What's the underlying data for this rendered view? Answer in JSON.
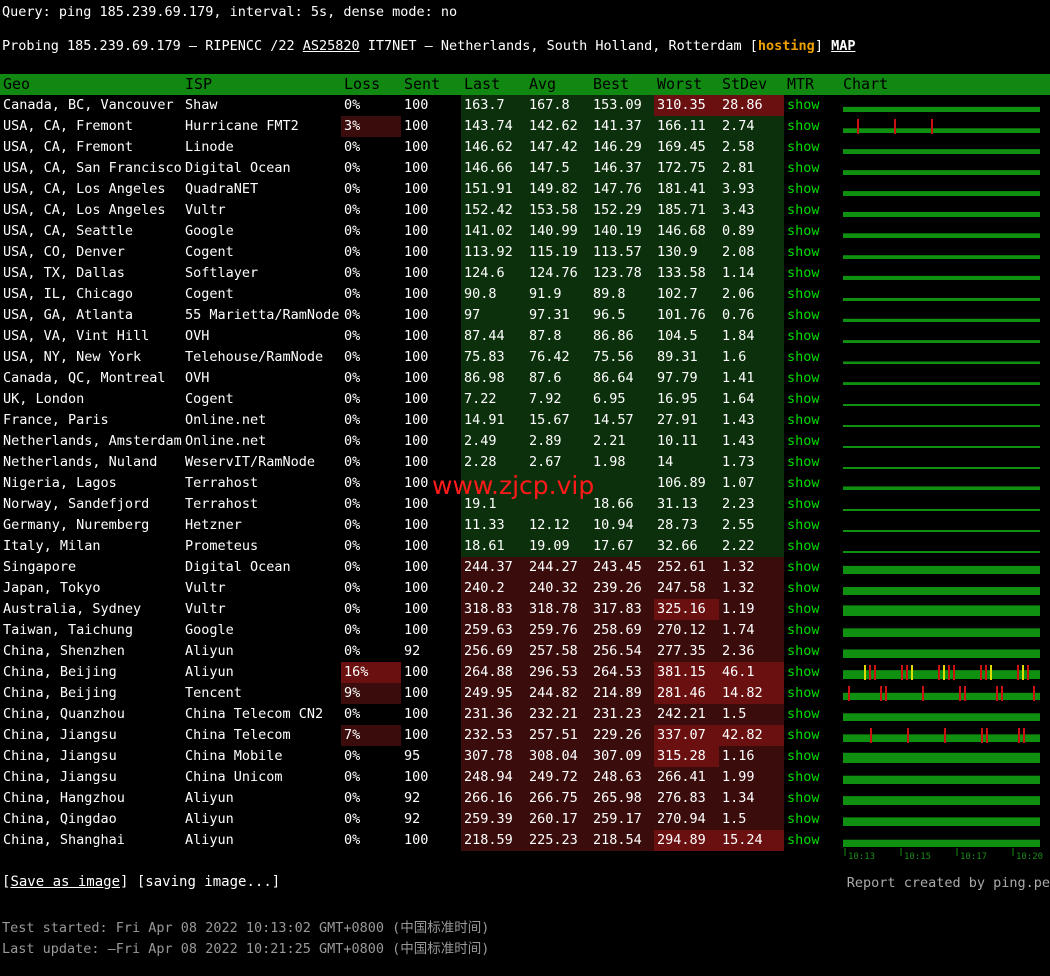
{
  "query_line": "Query: ping 185.239.69.179, interval: 5s, dense mode: no",
  "probe": {
    "prefix": "Probing 185.239.69.179 — RIPENCC /22 ",
    "asn": "AS25820",
    "middle": " IT7NET — Netherlands, South Holland, Rotterdam [",
    "hosting": "hosting",
    "close": "] ",
    "map": "MAP"
  },
  "columns": [
    "Geo",
    "ISP",
    "Loss",
    "Sent",
    "Last",
    "Avg",
    "Best",
    "Worst",
    "StDev",
    "MTR",
    "Chart"
  ],
  "rows": [
    {
      "geo": "Canada, BC, Vancouver",
      "isp": "Shaw",
      "loss": "0%",
      "sent": "100",
      "last": "163.7",
      "avg": "167.8",
      "best": "153.09",
      "worst": "310.35",
      "stdev": "28.86",
      "mtr": "show",
      "chart": "Canada, BC, Vancouver"
    },
    {
      "geo": "USA, CA, Fremont",
      "isp": "Hurricane FMT2",
      "loss": "3%",
      "sent": "100",
      "last": "143.74",
      "avg": "142.62",
      "best": "141.37",
      "worst": "166.11",
      "stdev": "2.74",
      "mtr": "show"
    },
    {
      "geo": "USA, CA, Fremont",
      "isp": "Linode",
      "loss": "0%",
      "sent": "100",
      "last": "146.62",
      "avg": "147.42",
      "best": "146.29",
      "worst": "169.45",
      "stdev": "2.58",
      "mtr": "show"
    },
    {
      "geo": "USA, CA, San Francisco",
      "isp": "Digital Ocean",
      "loss": "0%",
      "sent": "100",
      "last": "146.66",
      "avg": "147.5",
      "best": "146.37",
      "worst": "172.75",
      "stdev": "2.81",
      "mtr": "show"
    },
    {
      "geo": "USA, CA, Los Angeles",
      "isp": "QuadraNET",
      "loss": "0%",
      "sent": "100",
      "last": "151.91",
      "avg": "149.82",
      "best": "147.76",
      "worst": "181.41",
      "stdev": "3.93",
      "mtr": "show"
    },
    {
      "geo": "USA, CA, Los Angeles",
      "isp": "Vultr",
      "loss": "0%",
      "sent": "100",
      "last": "152.42",
      "avg": "153.58",
      "best": "152.29",
      "worst": "185.71",
      "stdev": "3.43",
      "mtr": "show"
    },
    {
      "geo": "USA, CA, Seattle",
      "isp": "Google",
      "loss": "0%",
      "sent": "100",
      "last": "141.02",
      "avg": "140.99",
      "best": "140.19",
      "worst": "146.68",
      "stdev": "0.89",
      "mtr": "show"
    },
    {
      "geo": "USA, CO, Denver",
      "isp": "Cogent",
      "loss": "0%",
      "sent": "100",
      "last": "113.92",
      "avg": "115.19",
      "best": "113.57",
      "worst": "130.9",
      "stdev": "2.08",
      "mtr": "show"
    },
    {
      "geo": "USA, TX, Dallas",
      "isp": "Softlayer",
      "loss": "0%",
      "sent": "100",
      "last": "124.6",
      "avg": "124.76",
      "best": "123.78",
      "worst": "133.58",
      "stdev": "1.14",
      "mtr": "show"
    },
    {
      "geo": "USA, IL, Chicago",
      "isp": "Cogent",
      "loss": "0%",
      "sent": "100",
      "last": "90.8",
      "avg": "91.9",
      "best": "89.8",
      "worst": "102.7",
      "stdev": "2.06",
      "mtr": "show"
    },
    {
      "geo": "USA, GA, Atlanta",
      "isp": "55 Marietta/RamNode",
      "loss": "0%",
      "sent": "100",
      "last": "97",
      "avg": "97.31",
      "best": "96.5",
      "worst": "101.76",
      "stdev": "0.76",
      "mtr": "show"
    },
    {
      "geo": "USA, VA, Vint Hill",
      "isp": "OVH",
      "loss": "0%",
      "sent": "100",
      "last": "87.44",
      "avg": "87.8",
      "best": "86.86",
      "worst": "104.5",
      "stdev": "1.84",
      "mtr": "show"
    },
    {
      "geo": "USA, NY, New York",
      "isp": "Telehouse/RamNode",
      "loss": "0%",
      "sent": "100",
      "last": "75.83",
      "avg": "76.42",
      "best": "75.56",
      "worst": "89.31",
      "stdev": "1.6",
      "mtr": "show"
    },
    {
      "geo": "Canada, QC, Montreal",
      "isp": "OVH",
      "loss": "0%",
      "sent": "100",
      "last": "86.98",
      "avg": "87.6",
      "best": "86.64",
      "worst": "97.79",
      "stdev": "1.41",
      "mtr": "show"
    },
    {
      "geo": "UK, London",
      "isp": "Cogent",
      "loss": "0%",
      "sent": "100",
      "last": "7.22",
      "avg": "7.92",
      "best": "6.95",
      "worst": "16.95",
      "stdev": "1.64",
      "mtr": "show"
    },
    {
      "geo": "France, Paris",
      "isp": "Online.net",
      "loss": "0%",
      "sent": "100",
      "last": "14.91",
      "avg": "15.67",
      "best": "14.57",
      "worst": "27.91",
      "stdev": "1.43",
      "mtr": "show"
    },
    {
      "geo": "Netherlands, Amsterdam",
      "isp": "Online.net",
      "loss": "0%",
      "sent": "100",
      "last": "2.49",
      "avg": "2.89",
      "best": "2.21",
      "worst": "10.11",
      "stdev": "1.43",
      "mtr": "show"
    },
    {
      "geo": "Netherlands, Nuland",
      "isp": "WeservIT/RamNode",
      "loss": "0%",
      "sent": "100",
      "last": "2.28",
      "avg": "2.67",
      "best": "1.98",
      "worst": "14",
      "stdev": "1.73",
      "mtr": "show"
    },
    {
      "geo": "Nigeria, Lagos",
      "isp": "Terrahost",
      "loss": "0%",
      "sent": "100",
      "last": "",
      "avg": "",
      "best": "",
      "worst": "106.89",
      "stdev": "1.07",
      "mtr": "show"
    },
    {
      "geo": "Norway, Sandefjord",
      "isp": "Terrahost",
      "loss": "0%",
      "sent": "100",
      "last": "19.1",
      "avg": "",
      "best": "18.66",
      "worst": "31.13",
      "stdev": "2.23",
      "mtr": "show"
    },
    {
      "geo": "Germany, Nuremberg",
      "isp": "Hetzner",
      "loss": "0%",
      "sent": "100",
      "last": "11.33",
      "avg": "12.12",
      "best": "10.94",
      "worst": "28.73",
      "stdev": "2.55",
      "mtr": "show"
    },
    {
      "geo": "Italy, Milan",
      "isp": "Prometeus",
      "loss": "0%",
      "sent": "100",
      "last": "18.61",
      "avg": "19.09",
      "best": "17.67",
      "worst": "32.66",
      "stdev": "2.22",
      "mtr": "show"
    },
    {
      "geo": "Singapore",
      "isp": "Digital Ocean",
      "loss": "0%",
      "sent": "100",
      "last": "244.37",
      "avg": "244.27",
      "best": "243.45",
      "worst": "252.61",
      "stdev": "1.32",
      "mtr": "show"
    },
    {
      "geo": "Japan, Tokyo",
      "isp": "Vultr",
      "loss": "0%",
      "sent": "100",
      "last": "240.2",
      "avg": "240.32",
      "best": "239.26",
      "worst": "247.58",
      "stdev": "1.32",
      "mtr": "show"
    },
    {
      "geo": "Australia, Sydney",
      "isp": "Vultr",
      "loss": "0%",
      "sent": "100",
      "last": "318.83",
      "avg": "318.78",
      "best": "317.83",
      "worst": "325.16",
      "stdev": "1.19",
      "mtr": "show"
    },
    {
      "geo": "Taiwan, Taichung",
      "isp": "Google",
      "loss": "0%",
      "sent": "100",
      "last": "259.63",
      "avg": "259.76",
      "best": "258.69",
      "worst": "270.12",
      "stdev": "1.74",
      "mtr": "show"
    },
    {
      "geo": "China, Shenzhen",
      "isp": "Aliyun",
      "loss": "0%",
      "sent": "92",
      "last": "256.69",
      "avg": "257.58",
      "best": "256.54",
      "worst": "277.35",
      "stdev": "2.36",
      "mtr": "show"
    },
    {
      "geo": "China, Beijing",
      "isp": "Aliyun",
      "loss": "16%",
      "sent": "100",
      "last": "264.88",
      "avg": "296.53",
      "best": "264.53",
      "worst": "381.15",
      "stdev": "46.1",
      "mtr": "show"
    },
    {
      "geo": "China, Beijing",
      "isp": "Tencent",
      "loss": "9%",
      "sent": "100",
      "last": "249.95",
      "avg": "244.82",
      "best": "214.89",
      "worst": "281.46",
      "stdev": "14.82",
      "mtr": "show"
    },
    {
      "geo": "China, Quanzhou",
      "isp": "China Telecom CN2",
      "loss": "0%",
      "sent": "100",
      "last": "231.36",
      "avg": "232.21",
      "best": "231.23",
      "worst": "242.21",
      "stdev": "1.5",
      "mtr": "show"
    },
    {
      "geo": "China, Jiangsu",
      "isp": "China Telecom",
      "loss": "7%",
      "sent": "100",
      "last": "232.53",
      "avg": "257.51",
      "best": "229.26",
      "worst": "337.07",
      "stdev": "42.82",
      "mtr": "show"
    },
    {
      "geo": "China, Jiangsu",
      "isp": "China Mobile",
      "loss": "0%",
      "sent": "95",
      "last": "307.78",
      "avg": "308.04",
      "best": "307.09",
      "worst": "315.28",
      "stdev": "1.16",
      "mtr": "show"
    },
    {
      "geo": "China, Jiangsu",
      "isp": "China Unicom",
      "loss": "0%",
      "sent": "100",
      "last": "248.94",
      "avg": "249.72",
      "best": "248.63",
      "worst": "266.41",
      "stdev": "1.99",
      "mtr": "show"
    },
    {
      "geo": "China, Hangzhou",
      "isp": "Aliyun",
      "loss": "0%",
      "sent": "92",
      "last": "266.16",
      "avg": "266.75",
      "best": "265.98",
      "worst": "276.83",
      "stdev": "1.34",
      "mtr": "show"
    },
    {
      "geo": "China, Qingdao",
      "isp": "Aliyun",
      "loss": "0%",
      "sent": "92",
      "last": "259.39",
      "avg": "260.17",
      "best": "259.17",
      "worst": "270.94",
      "stdev": "1.5",
      "mtr": "show"
    },
    {
      "geo": "China, Shanghai",
      "isp": "Aliyun",
      "loss": "0%",
      "sent": "100",
      "last": "218.59",
      "avg": "225.23",
      "best": "218.54",
      "worst": "294.89",
      "stdev": "15.24",
      "mtr": "show"
    }
  ],
  "chart_axis_ticks": [
    "10:13",
    "10:15",
    "10:17",
    "10:20"
  ],
  "footer": {
    "save_image": "Save as image",
    "saving": " [saving image...]",
    "report": "Report created by ping.pe",
    "started": "Test started: Fri Apr 08 2022 10:13:02 GMT+0800 (中国标准时间)",
    "updated": "Last update: —Fri Apr 08 2022 10:21:25 GMT+0800 (中国标准时间)"
  },
  "watermark": "www.zjcp.vip",
  "colors": {
    "header_bg": "#118811",
    "show_link": "#00dd00",
    "good_bg": "#0c300c",
    "bad_bg": "#3a0c0c",
    "worse_bg": "#6a1010",
    "bar_green": "#109010",
    "bar_red": "#cc1111",
    "bar_yellow": "#dddd00",
    "hosting": "#f0a000"
  }
}
